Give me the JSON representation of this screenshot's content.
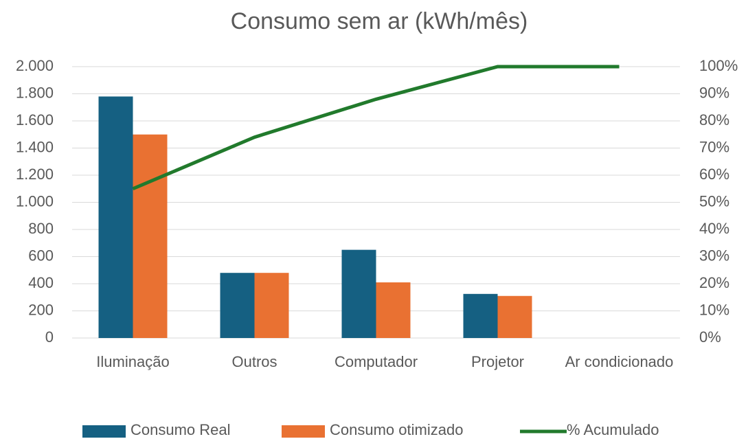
{
  "chart_data": {
    "type": "bar",
    "title": "Consumo sem ar (kWh/mês)",
    "categories": [
      "Iluminação",
      "Outros",
      "Computador",
      "Projetor",
      "Ar condicionado"
    ],
    "series": [
      {
        "name": "Consumo Real",
        "color": "#156082",
        "values": [
          1780,
          480,
          650,
          325,
          0
        ]
      },
      {
        "name": "Consumo otimizado",
        "color": "#e97132",
        "values": [
          1500,
          480,
          410,
          310,
          0
        ]
      },
      {
        "name": "% Acumulado",
        "color": "#217a2c",
        "type": "line",
        "axis": "y2",
        "values": [
          55,
          74,
          88,
          100,
          100
        ]
      }
    ],
    "ylim": [
      0,
      2000
    ],
    "yticks": [
      0,
      200,
      400,
      600,
      800,
      {
        "value": 1000,
        "label": "1.000"
      },
      {
        "value": 1200,
        "label": "1.200"
      },
      {
        "value": 1400,
        "label": "1.400"
      },
      {
        "value": 1600,
        "label": "1.600"
      },
      {
        "value": 1800,
        "label": "1.800"
      },
      {
        "value": 2000,
        "label": "2.000"
      }
    ],
    "y2lim": [
      0,
      100
    ],
    "y2ticks": [
      {
        "value": 0,
        "label": "0%"
      },
      {
        "value": 10,
        "label": "10%"
      },
      {
        "value": 20,
        "label": "20%"
      },
      {
        "value": 30,
        "label": "30%"
      },
      {
        "value": 40,
        "label": "40%"
      },
      {
        "value": 50,
        "label": "50%"
      },
      {
        "value": 60,
        "label": "60%"
      },
      {
        "value": 70,
        "label": "70%"
      },
      {
        "value": 80,
        "label": "80%"
      },
      {
        "value": 90,
        "label": "90%"
      },
      {
        "value": 100,
        "label": "100%"
      }
    ],
    "grid": true,
    "legend": "bottom"
  }
}
